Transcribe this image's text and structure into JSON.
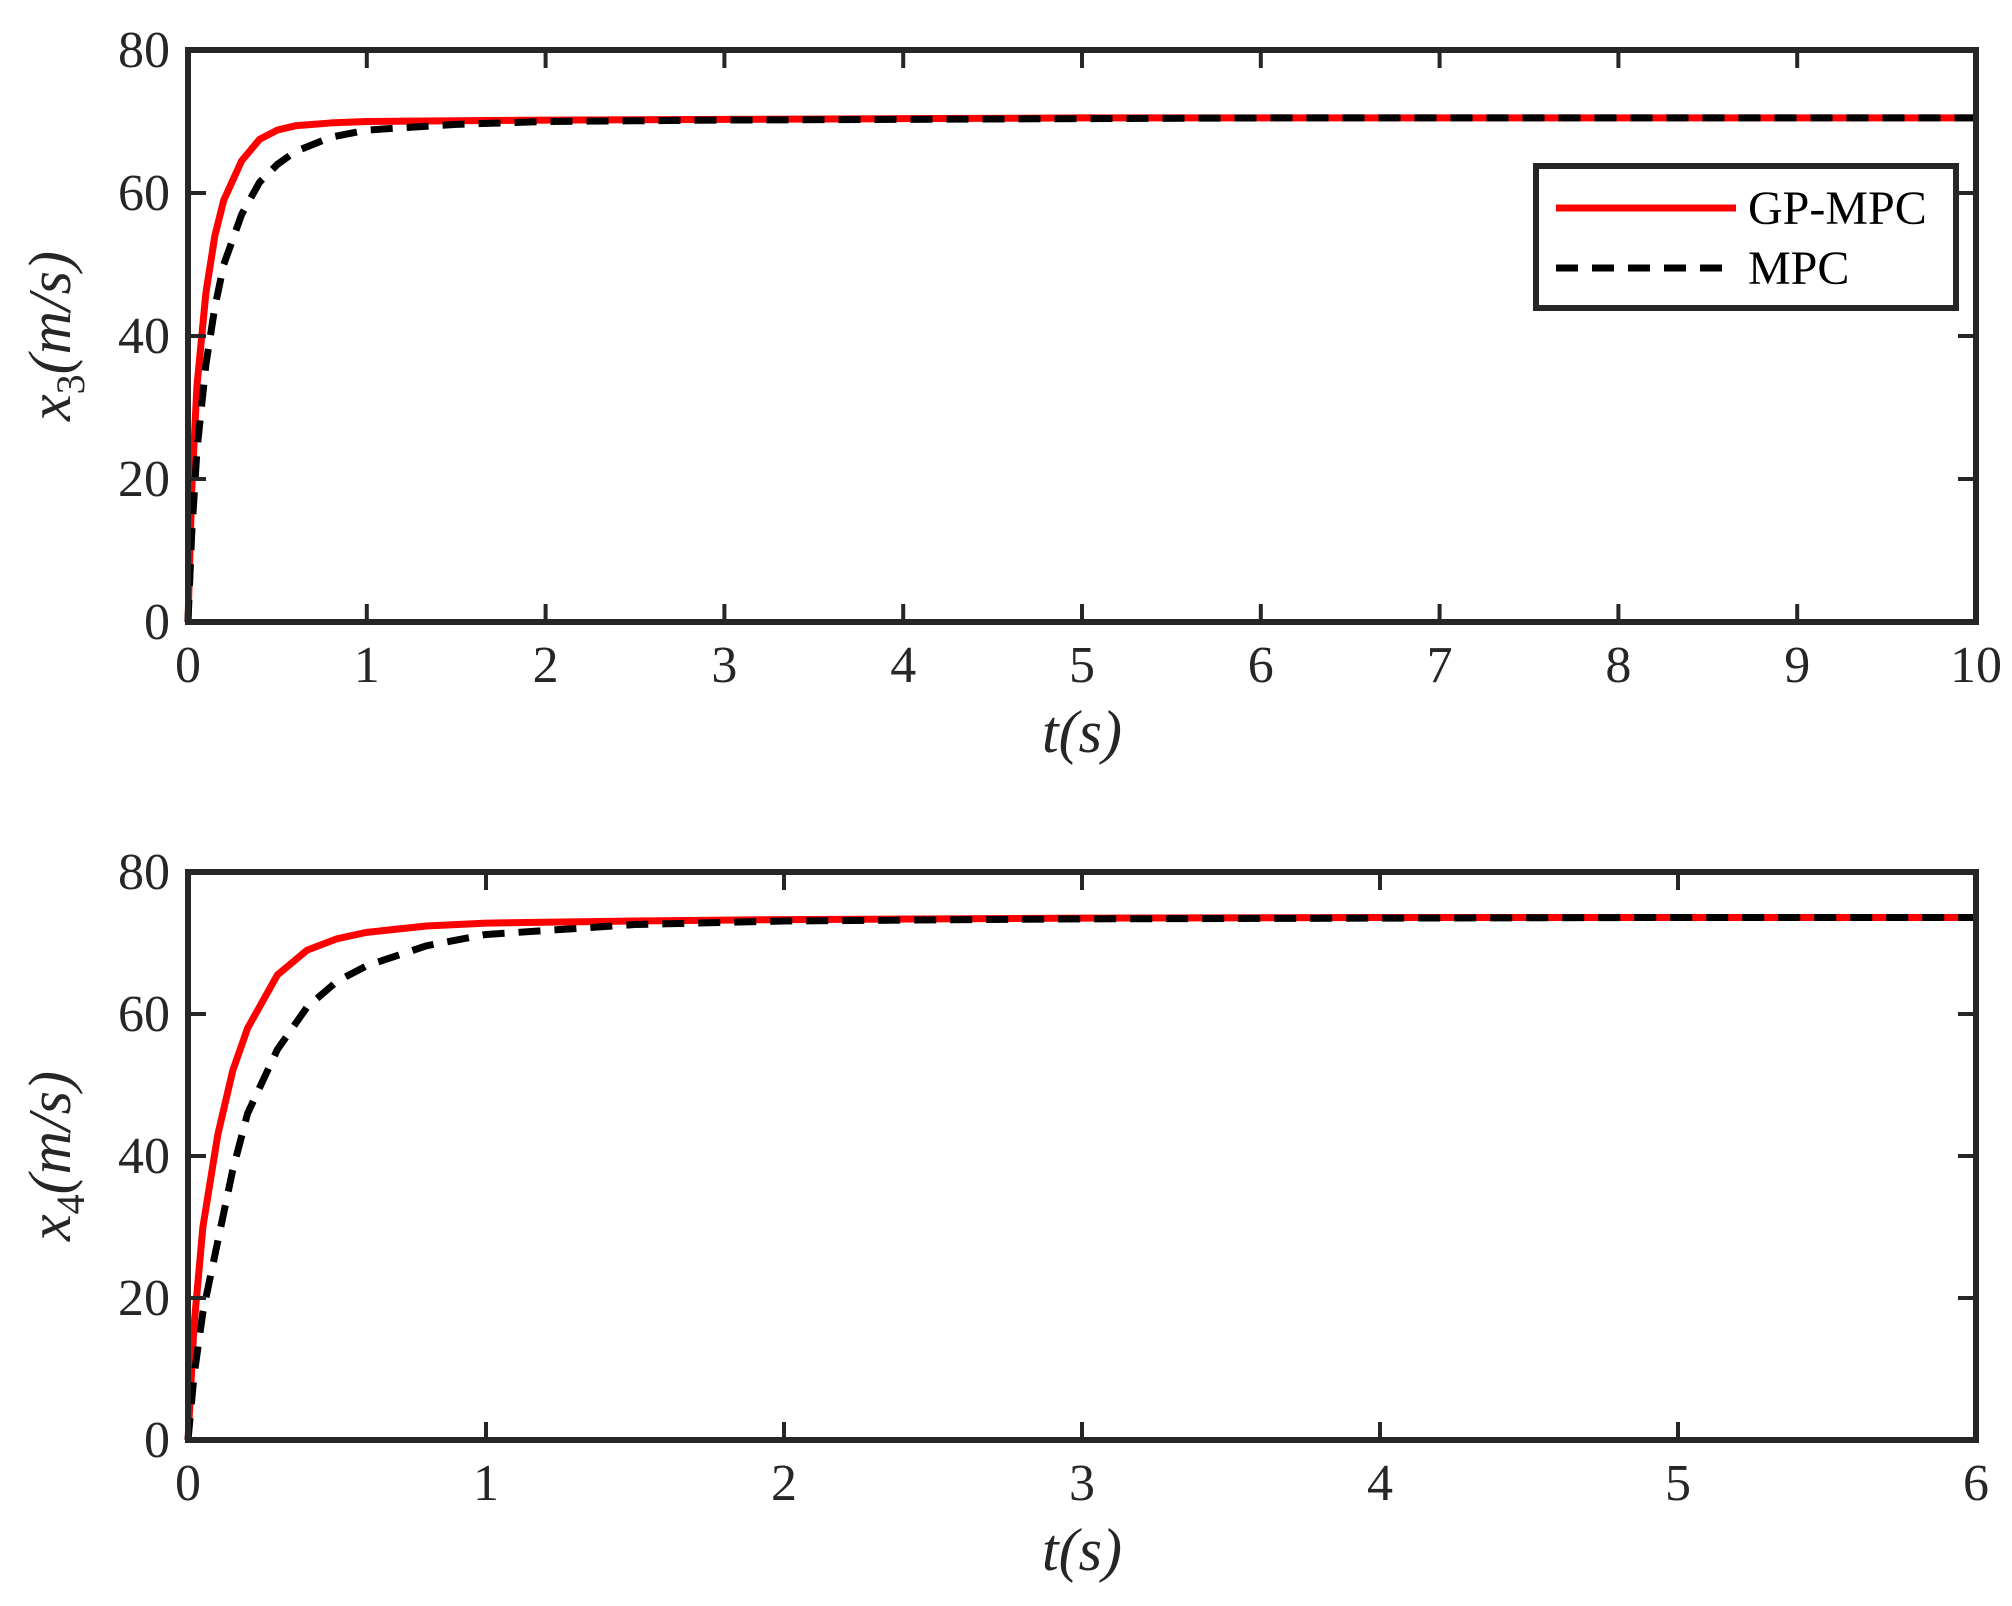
{
  "colors": {
    "gp_mpc": "#ff0000",
    "mpc": "#000000",
    "axes": "#262626",
    "background": "#ffffff"
  },
  "chart_data": [
    {
      "type": "line",
      "title": "",
      "xlabel": "t(s)",
      "ylabel": {
        "symbol": "x",
        "subscript": "3",
        "unit": "(m/s)"
      },
      "xlim": [
        0,
        10
      ],
      "ylim": [
        0,
        80
      ],
      "xticks": [
        "0",
        "1",
        "2",
        "3",
        "4",
        "5",
        "6",
        "7",
        "8",
        "9",
        "10"
      ],
      "yticks": [
        "0",
        "20",
        "40",
        "60",
        "80"
      ],
      "grid": false,
      "legend": {
        "position": "top-right",
        "entries": [
          "GP-MPC",
          "MPC"
        ]
      },
      "series": [
        {
          "name": "GP-MPC",
          "style": "solid",
          "x": [
            0,
            0.02,
            0.05,
            0.1,
            0.15,
            0.2,
            0.3,
            0.4,
            0.5,
            0.6,
            0.8,
            1,
            1.5,
            2,
            3,
            4,
            5,
            6,
            7,
            8,
            9,
            10
          ],
          "y": [
            0,
            18,
            33,
            46,
            54,
            59,
            64.5,
            67.5,
            68.8,
            69.4,
            69.8,
            70,
            70.1,
            70.2,
            70.3,
            70.4,
            70.5,
            70.5,
            70.5,
            70.5,
            70.5,
            70.5
          ]
        },
        {
          "name": "MPC",
          "style": "dashed",
          "x": [
            0,
            0.02,
            0.05,
            0.1,
            0.15,
            0.2,
            0.3,
            0.4,
            0.5,
            0.6,
            0.8,
            1,
            1.5,
            2,
            3,
            4,
            5,
            6,
            7,
            8,
            9,
            10
          ],
          "y": [
            0,
            12,
            24,
            36,
            44,
            50,
            57,
            61.5,
            64,
            65.8,
            67.8,
            68.8,
            69.6,
            70,
            70.2,
            70.3,
            70.4,
            70.5,
            70.5,
            70.5,
            70.5,
            70.5
          ]
        }
      ]
    },
    {
      "type": "line",
      "title": "",
      "xlabel": "t(s)",
      "ylabel": {
        "symbol": "x",
        "subscript": "4",
        "unit": "(m/s)"
      },
      "xlim": [
        0,
        6
      ],
      "ylim": [
        0,
        80
      ],
      "xticks": [
        "0",
        "1",
        "2",
        "3",
        "4",
        "5",
        "6"
      ],
      "yticks": [
        "0",
        "20",
        "40",
        "60",
        "80"
      ],
      "grid": false,
      "legend": null,
      "series": [
        {
          "name": "GP-MPC",
          "style": "solid",
          "x": [
            0,
            0.02,
            0.05,
            0.1,
            0.15,
            0.2,
            0.3,
            0.4,
            0.5,
            0.6,
            0.8,
            1,
            1.5,
            2,
            3,
            4,
            5,
            6
          ],
          "y": [
            0,
            16,
            30,
            43,
            52,
            58,
            65.5,
            69,
            70.6,
            71.5,
            72.4,
            72.8,
            73.1,
            73.3,
            73.5,
            73.6,
            73.6,
            73.6
          ]
        },
        {
          "name": "MPC",
          "style": "dashed",
          "x": [
            0,
            0.02,
            0.05,
            0.1,
            0.15,
            0.2,
            0.3,
            0.4,
            0.5,
            0.6,
            0.8,
            1,
            1.5,
            2,
            3,
            4,
            5,
            6
          ],
          "y": [
            0,
            9,
            18,
            28,
            38,
            46,
            55,
            61,
            64.6,
            66.8,
            69.6,
            71.2,
            72.6,
            73.1,
            73.4,
            73.5,
            73.6,
            73.6
          ]
        }
      ]
    }
  ]
}
